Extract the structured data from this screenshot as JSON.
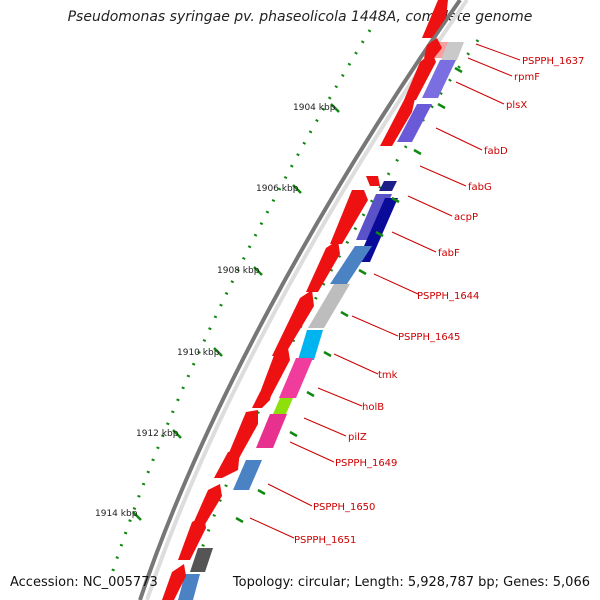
{
  "title": "Pseudomonas syringae pv. phaseolicola 1448A, complete genome",
  "footer": {
    "accession": "Accession: NC_005773",
    "topology": "Topology: circular; Length: 5,928,787 bp; Genes: 5,066"
  },
  "ticks": [
    "1904 kbp",
    "1906 kbp",
    "1908 kbp",
    "1910 kbp",
    "1912 kbp",
    "1914 kbp"
  ],
  "genes": [
    "PSPPH_1637",
    "rpmF",
    "plsX",
    "fabD",
    "fabG",
    "acpP",
    "fabF",
    "PSPPH_1644",
    "PSPPH_1645",
    "tmk",
    "holB",
    "pilZ",
    "PSPPH_1649",
    "PSPPH_1650",
    "PSPPH_1651"
  ],
  "colors": {
    "forward": "#ee1111",
    "backbone": "#888888",
    "tick_dots": "#118811",
    "label": "#cc0000"
  }
}
